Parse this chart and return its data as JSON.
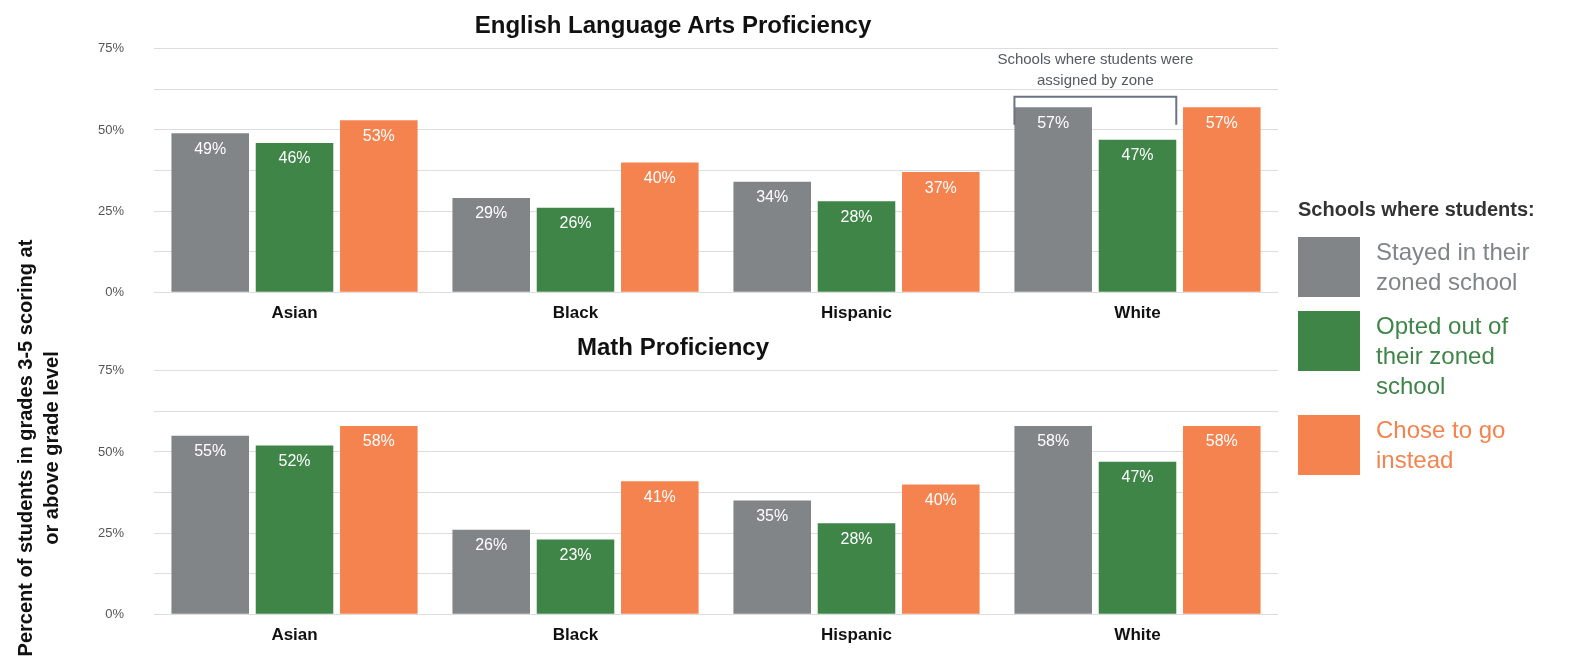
{
  "chart_data": [
    {
      "type": "bar",
      "title": "English Language Arts Proficiency",
      "ylabel": "Percent of students in grades 3-5 scoring at or above grade level",
      "legend_title": "Schools where students:",
      "legend": "right",
      "grid": "y",
      "data_labels": false,
      "categories": [
        "Asian",
        "Black",
        "Hispanic",
        "White"
      ],
      "ylim": [
        0,
        75
      ],
      "yticks": [
        {
          "value": 0,
          "label": "0%"
        },
        {
          "value": 12.5,
          "label": null
        },
        {
          "value": 25,
          "label": "25%"
        },
        {
          "value": 37.5,
          "label": null
        },
        {
          "value": 50,
          "label": "50%"
        },
        {
          "value": 62.5,
          "label": null
        },
        {
          "value": 75,
          "label": "75%"
        }
      ],
      "annotations": [
        "Schools where students were assigned by zone"
      ],
      "series": [
        {
          "name": "Stayed in their zoned school",
          "color": "#818587",
          "values": [
            49,
            29,
            34,
            57
          ],
          "value_labels": [
            "49%",
            "29%",
            "34%",
            "57%"
          ]
        },
        {
          "name": "Opted out of their zoned school",
          "color": "#3f8548",
          "values": [
            46,
            26,
            28,
            47
          ],
          "value_labels": [
            "46%",
            "26%",
            "28%",
            "47%"
          ]
        },
        {
          "name": "Chose to go instead",
          "color": "#f4834f",
          "values": [
            53,
            40,
            37,
            57
          ],
          "value_labels": [
            "53%",
            "40%",
            "37%",
            "57%"
          ]
        }
      ]
    },
    {
      "type": "bar",
      "title": "Math Proficiency",
      "grid": "y",
      "categories": [
        "Asian",
        "Black",
        "Hispanic",
        "White"
      ],
      "ylim": [
        0,
        75
      ],
      "yticks": [
        {
          "value": 0,
          "label": "0%"
        },
        {
          "value": 12.5,
          "label": null
        },
        {
          "value": 25,
          "label": "25%"
        },
        {
          "value": 37.5,
          "label": null
        },
        {
          "value": 50,
          "label": "50%"
        },
        {
          "value": 62.5,
          "label": null
        },
        {
          "value": 75,
          "label": "75%"
        }
      ],
      "series": [
        {
          "color": "#818587",
          "values": [
            55,
            26,
            35,
            58
          ],
          "value_labels": [
            "55%",
            "26%",
            "35%",
            "58%"
          ]
        },
        {
          "color": "#3f8548",
          "values": [
            52,
            23,
            28,
            47
          ],
          "value_labels": [
            "52%",
            "23%",
            "28%",
            "47%"
          ]
        },
        {
          "color": "#f4834f",
          "values": [
            58,
            41,
            40,
            58
          ],
          "value_labels": [
            "58%",
            "41%",
            "40%",
            "58%"
          ]
        }
      ]
    }
  ]
}
